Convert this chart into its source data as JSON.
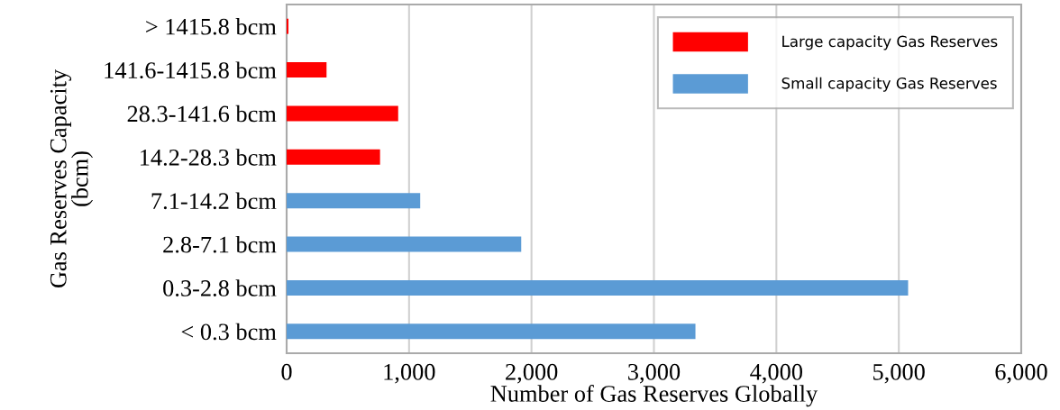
{
  "chart_data": {
    "type": "bar",
    "orientation": "horizontal",
    "categories": [
      "> 1415.8 bcm",
      "141.6-1415.8 bcm",
      "28.3-141.6 bcm",
      "14.2-28.3 bcm",
      "7.1-14.2 bcm",
      "2.8-7.1 bcm",
      "0.3-2.8 bcm",
      "< 0.3 bcm"
    ],
    "series": [
      {
        "name": "Large capacity Gas Reserves",
        "color": "#ff0000",
        "values": [
          15,
          326,
          911,
          763,
          null,
          null,
          null,
          null
        ]
      },
      {
        "name": "Small capacity Gas Reserves",
        "color": "#5b9bd5",
        "values": [
          null,
          null,
          null,
          null,
          1091,
          1916,
          5076,
          3339
        ]
      }
    ],
    "xlabel": "Number of Gas Reserves Globally",
    "ylabel": "Gas Reserves Capacity\n(bcm)",
    "xlim": [
      0,
      6000
    ],
    "xticks": [
      {
        "value": 0,
        "label": "0"
      },
      {
        "value": 1000,
        "label": "1,000"
      },
      {
        "value": 2000,
        "label": "2,000"
      },
      {
        "value": 3000,
        "label": "3,000"
      },
      {
        "value": 4000,
        "label": "4,000"
      },
      {
        "value": 5000,
        "label": "5,000"
      },
      {
        "value": 6000,
        "label": "6,000"
      }
    ],
    "grid": "x",
    "legend": "top right"
  }
}
